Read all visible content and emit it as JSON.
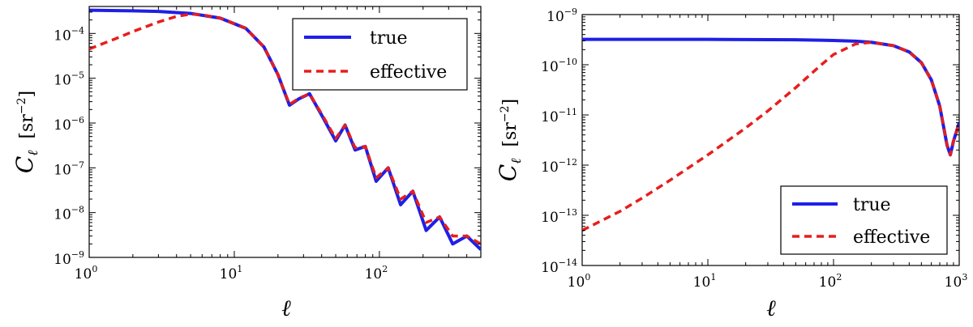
{
  "chart_data": [
    {
      "type": "line",
      "xscale": "log",
      "yscale": "log",
      "xlim": [
        1,
        500
      ],
      "ylim": [
        1e-09,
        0.0004
      ],
      "xlabel": "ℓ",
      "ylabel": "C",
      "ylabel_sub": "ℓ",
      "ylabel_unit": "[sr",
      "ylabel_unit_exp": "−2",
      "ylabel_unit_close": "]",
      "x_ticks": [
        {
          "base": "10",
          "exp": "0",
          "value": 1
        },
        {
          "base": "10",
          "exp": "1",
          "value": 10
        },
        {
          "base": "10",
          "exp": "2",
          "value": 100
        }
      ],
      "y_ticks": [
        {
          "base": "10",
          "exp": "−9",
          "value": 1e-09
        },
        {
          "base": "10",
          "exp": "−8",
          "value": 1e-08
        },
        {
          "base": "10",
          "exp": "−7",
          "value": 1e-07
        },
        {
          "base": "10",
          "exp": "−6",
          "value": 1e-06
        },
        {
          "base": "10",
          "exp": "−5",
          "value": 1e-05
        },
        {
          "base": "10",
          "exp": "−4",
          "value": 0.0001
        }
      ],
      "legend_position": "top-right",
      "series": [
        {
          "name": "true",
          "color": "#1f1fe6",
          "style": "solid",
          "x": [
            1,
            2,
            3,
            5,
            8,
            12,
            16,
            20,
            24,
            28,
            33,
            40,
            50,
            58,
            68,
            80,
            95,
            115,
            140,
            170,
            210,
            260,
            320,
            400,
            500
          ],
          "y": [
            0.00033,
            0.00032,
            0.00031,
            0.00028,
            0.00022,
            0.00013,
            5e-05,
            1.2e-05,
            2.5e-06,
            3.5e-06,
            4.5e-06,
            1.5e-06,
            4e-07,
            9e-07,
            2.5e-07,
            3e-07,
            5e-08,
            1e-07,
            1.5e-08,
            3e-08,
            4e-09,
            8e-09,
            2e-09,
            3e-09,
            1.5e-09
          ]
        },
        {
          "name": "effective",
          "color": "#e61e1e",
          "style": "dashed",
          "x": [
            1,
            1.5,
            2,
            3,
            4,
            5,
            6,
            8,
            12,
            16,
            20,
            24,
            28,
            33,
            40,
            50,
            58,
            68,
            80,
            95,
            115,
            140,
            170,
            210,
            260,
            320,
            400,
            500
          ],
          "y": [
            4.5e-05,
            7.5e-05,
            0.00011,
            0.00018,
            0.00024,
            0.00027,
            0.00026,
            0.00022,
            0.00013,
            5e-05,
            1.2e-05,
            2.6e-06,
            3.6e-06,
            4.5e-06,
            1.6e-06,
            4.5e-07,
            9e-07,
            2.8e-07,
            3e-07,
            6e-08,
            1e-07,
            2e-08,
            3e-08,
            6e-09,
            8e-09,
            3e-09,
            3e-09,
            2e-09
          ]
        }
      ]
    },
    {
      "type": "line",
      "xscale": "log",
      "yscale": "log",
      "xlim": [
        1,
        1000
      ],
      "ylim": [
        1e-14,
        1e-09
      ],
      "xlabel": "ℓ",
      "ylabel": "C",
      "ylabel_sub": "ℓ",
      "ylabel_unit": "[sr",
      "ylabel_unit_exp": "−2",
      "ylabel_unit_close": "]",
      "x_ticks": [
        {
          "base": "10",
          "exp": "0",
          "value": 1
        },
        {
          "base": "10",
          "exp": "1",
          "value": 10
        },
        {
          "base": "10",
          "exp": "2",
          "value": 100
        },
        {
          "base": "10",
          "exp": "3",
          "value": 1000
        }
      ],
      "y_ticks": [
        {
          "base": "10",
          "exp": "−14",
          "value": 1e-14
        },
        {
          "base": "10",
          "exp": "−13",
          "value": 1e-13
        },
        {
          "base": "10",
          "exp": "−12",
          "value": 1e-12
        },
        {
          "base": "10",
          "exp": "−11",
          "value": 1e-11
        },
        {
          "base": "10",
          "exp": "−10",
          "value": 1e-10
        },
        {
          "base": "10",
          "exp": "−9",
          "value": 1e-09
        }
      ],
      "legend_position": "bottom-right",
      "series": [
        {
          "name": "true",
          "color": "#1f1fe6",
          "style": "solid",
          "x": [
            1,
            10,
            50,
            100,
            150,
            200,
            300,
            400,
            500,
            600,
            700,
            800,
            850,
            900,
            1000
          ],
          "y": [
            3.2e-10,
            3.2e-10,
            3.15e-10,
            3.05e-10,
            2.95e-10,
            2.8e-10,
            2.4e-10,
            1.8e-10,
            1.1e-10,
            5e-11,
            1.5e-11,
            2.5e-12,
            1.6e-12,
            3e-12,
            7e-12
          ]
        },
        {
          "name": "effective",
          "color": "#e61e1e",
          "style": "dashed",
          "x": [
            1,
            2,
            3,
            5,
            10,
            20,
            30,
            50,
            80,
            100,
            150,
            200,
            300,
            400,
            500,
            600,
            700,
            800,
            850,
            900,
            1000
          ],
          "y": [
            5e-14,
            1.2e-13,
            2.2e-13,
            5e-13,
            1.6e-12,
            5.5e-12,
            1.2e-11,
            3.5e-11,
            1e-10,
            1.6e-10,
            2.6e-10,
            2.8e-10,
            2.4e-10,
            1.8e-10,
            1.1e-10,
            5e-11,
            1.5e-11,
            2.5e-12,
            1.6e-12,
            3e-12,
            7e-12
          ]
        }
      ]
    }
  ]
}
